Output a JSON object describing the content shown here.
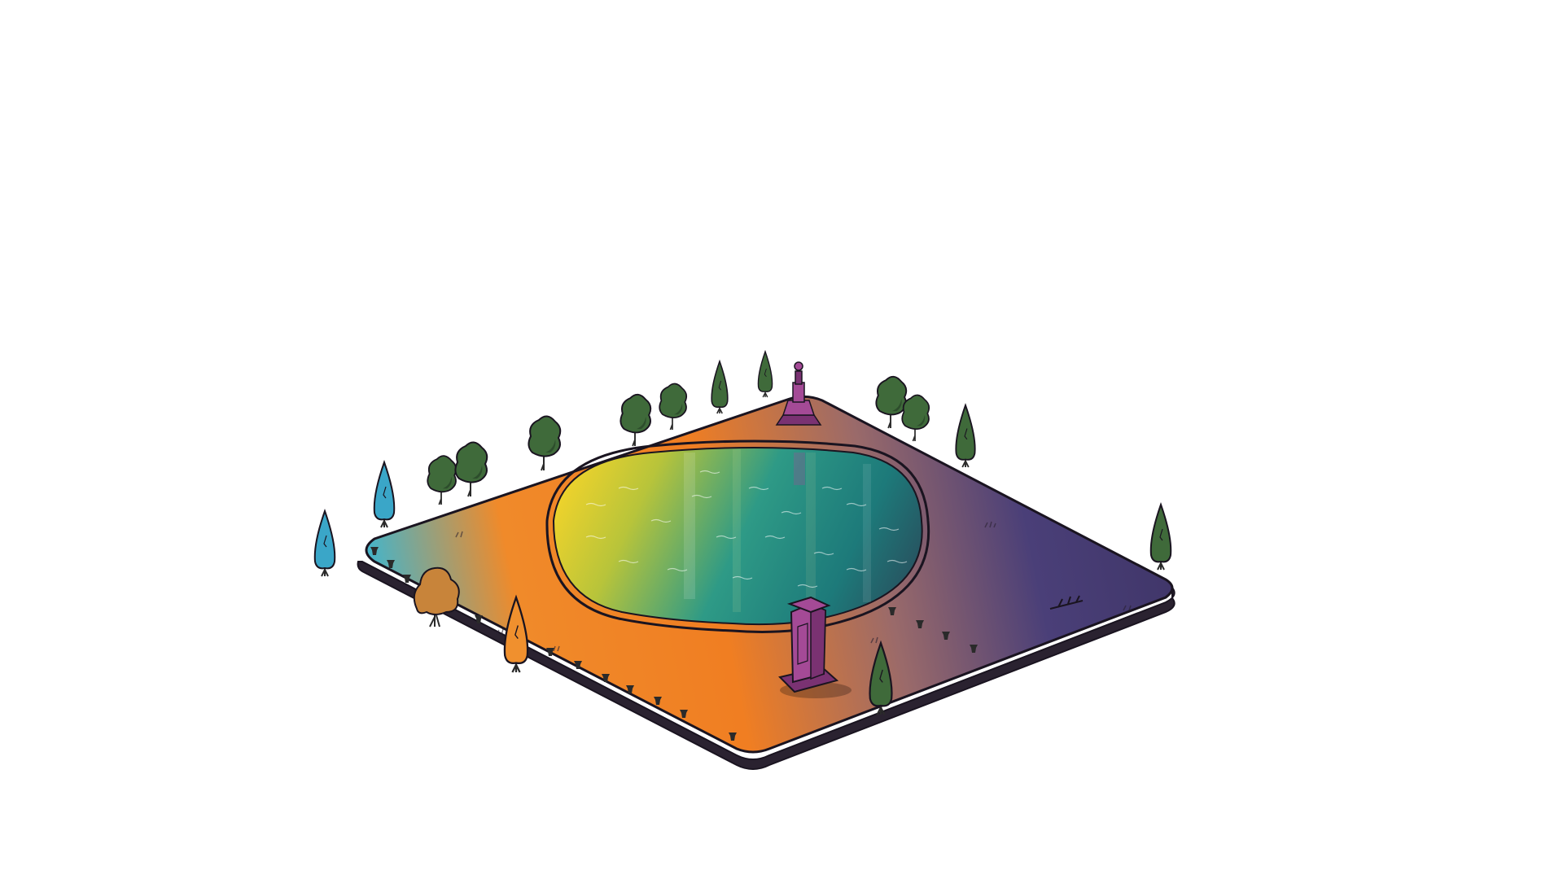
{
  "scene": {
    "kind": "isometric-park-tile",
    "background_color": "#ffffff",
    "ground": {
      "gradient": [
        "#35b8d8",
        "#f08a2a",
        "#f07e22",
        "#9a6a6a",
        "#4a3f78",
        "#3e3466"
      ],
      "outline_color": "#1a1420"
    },
    "pond": {
      "gradient": [
        "#f4d42a",
        "#b8c43a",
        "#2e9a86",
        "#1d7a7a",
        "#2a4a5a"
      ],
      "rim_color": "#1a1420"
    },
    "monuments": [
      {
        "name": "statue-column",
        "color": "#a44a96"
      },
      {
        "name": "obelisk-plinth",
        "color": "#b05aa0"
      }
    ],
    "trees": {
      "leaf_color": "#3f6a3a",
      "leaf_dark": "#2d4d2c",
      "trunk_color": "#2a2a2a",
      "cypress_teal": "#3aa6c8",
      "cypress_orange": "#f0902e",
      "autumn_bush": "#c8843a"
    },
    "bollards": {
      "color": "#2a2a2a",
      "count": 14
    }
  }
}
